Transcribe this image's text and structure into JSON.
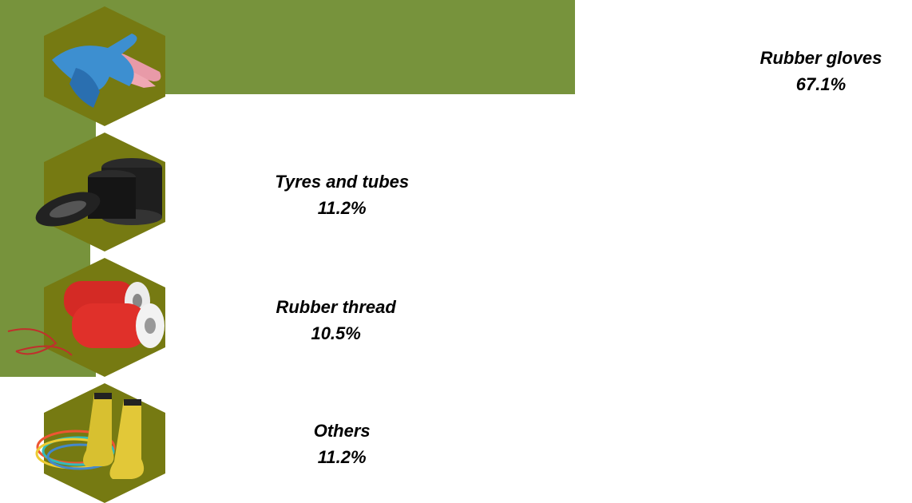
{
  "chart_data": {
    "type": "bar",
    "orientation": "horizontal",
    "color": "#77933c",
    "categories": [
      "Rubber gloves",
      "Tyres and tubes",
      "Rubber thread",
      "Others"
    ],
    "values": [
      67.1,
      11.2,
      10.5,
      11.2
    ],
    "value_labels": [
      "67.1%",
      "11.2%",
      "10.5%",
      "11.2%"
    ]
  }
}
